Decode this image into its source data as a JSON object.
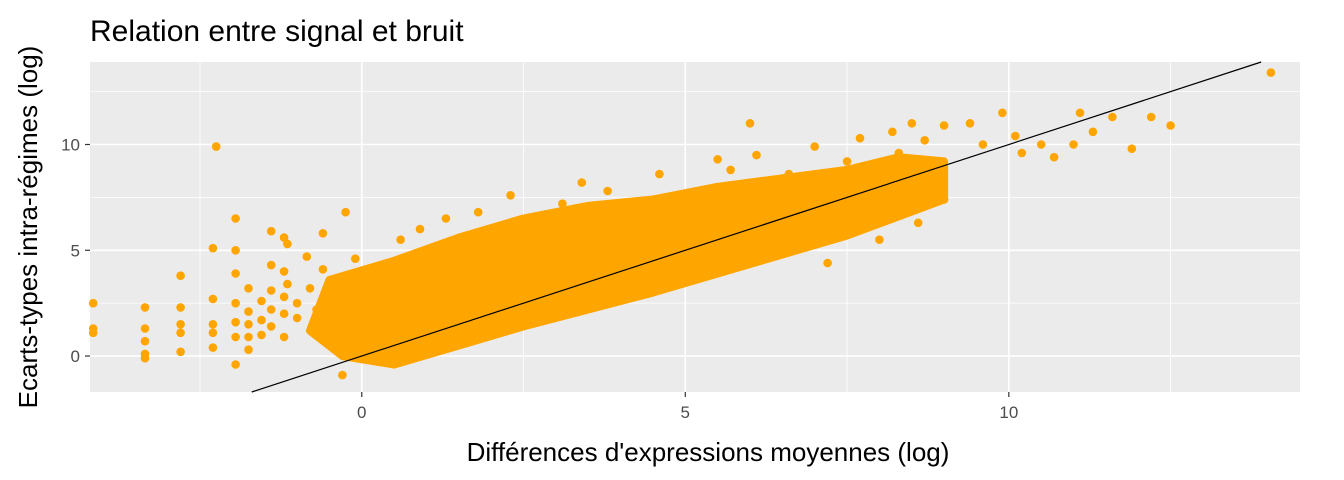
{
  "chart_data": {
    "type": "scatter",
    "title": "Relation entre signal et bruit",
    "xlabel": "Différences d'expressions moyennes (log)",
    "ylabel": "Ecarts-types intra-régimes (log)",
    "xlim": [
      -4.2,
      14.5
    ],
    "ylim": [
      -1.7,
      13.9
    ],
    "x_ticks": [
      0,
      5,
      10
    ],
    "y_ticks": [
      0,
      5,
      10
    ],
    "grid": true,
    "panel_background": "#ebebeb",
    "point_color": "#ffa500",
    "reference_line": {
      "slope": 1,
      "intercept": 0,
      "color": "#000000"
    },
    "series": [
      {
        "points": [
          [
            -4.15,
            2.5
          ],
          [
            -4.15,
            1.3
          ],
          [
            -4.15,
            1.1
          ],
          [
            -3.35,
            2.3
          ],
          [
            -3.35,
            1.3
          ],
          [
            -3.35,
            0.7
          ],
          [
            -3.35,
            0.1
          ],
          [
            -3.35,
            -0.1
          ],
          [
            -2.8,
            3.8
          ],
          [
            -2.8,
            2.3
          ],
          [
            -2.8,
            1.5
          ],
          [
            -2.8,
            1.1
          ],
          [
            -2.8,
            0.2
          ],
          [
            -2.25,
            9.9
          ],
          [
            -2.3,
            5.1
          ],
          [
            -2.3,
            2.7
          ],
          [
            -2.3,
            1.5
          ],
          [
            -2.3,
            1.1
          ],
          [
            -2.3,
            0.4
          ],
          [
            -1.95,
            6.5
          ],
          [
            -1.95,
            5.0
          ],
          [
            -1.95,
            3.9
          ],
          [
            -1.95,
            2.5
          ],
          [
            -1.95,
            1.6
          ],
          [
            -1.95,
            0.9
          ],
          [
            -1.95,
            -0.4
          ],
          [
            -1.75,
            3.2
          ],
          [
            -1.75,
            2.1
          ],
          [
            -1.75,
            1.5
          ],
          [
            -1.75,
            0.9
          ],
          [
            -1.75,
            0.3
          ],
          [
            -1.55,
            2.6
          ],
          [
            -1.55,
            1.7
          ],
          [
            -1.55,
            1.0
          ],
          [
            -1.4,
            5.9
          ],
          [
            -1.4,
            4.3
          ],
          [
            -1.4,
            3.1
          ],
          [
            -1.4,
            2.2
          ],
          [
            -1.4,
            1.4
          ],
          [
            -1.2,
            5.6
          ],
          [
            -1.2,
            4.0
          ],
          [
            -1.2,
            2.8
          ],
          [
            -1.2,
            2.0
          ],
          [
            -1.2,
            0.9
          ],
          [
            -1.15,
            5.3
          ],
          [
            -1.15,
            3.4
          ],
          [
            -1.0,
            2.5
          ],
          [
            -1.0,
            1.8
          ],
          [
            -0.85,
            4.7
          ],
          [
            -0.8,
            3.2
          ],
          [
            -0.7,
            2.2
          ],
          [
            -0.6,
            4.1
          ],
          [
            -0.55,
            1.3
          ],
          [
            -0.6,
            5.8
          ],
          [
            -0.3,
            3.5
          ],
          [
            -0.25,
            6.8
          ],
          [
            -0.1,
            4.6
          ],
          [
            -0.2,
            0.0
          ],
          [
            -0.3,
            -0.9
          ],
          [
            0.5,
            3.7
          ],
          [
            0.6,
            5.5
          ],
          [
            0.9,
            6.0
          ],
          [
            1.3,
            6.5
          ],
          [
            1.8,
            6.8
          ],
          [
            2.3,
            7.6
          ],
          [
            2.5,
            5.5
          ],
          [
            3.1,
            7.2
          ],
          [
            3.4,
            8.2
          ],
          [
            3.8,
            7.8
          ],
          [
            4.0,
            7.0
          ],
          [
            4.6,
            8.6
          ],
          [
            5.5,
            9.3
          ],
          [
            5.7,
            8.8
          ],
          [
            6.0,
            11.0
          ],
          [
            6.1,
            9.5
          ],
          [
            6.6,
            8.6
          ],
          [
            7.0,
            9.9
          ],
          [
            7.5,
            9.2
          ],
          [
            7.7,
            10.3
          ],
          [
            8.2,
            10.6
          ],
          [
            8.3,
            9.6
          ],
          [
            8.5,
            11.0
          ],
          [
            8.7,
            10.2
          ],
          [
            9.0,
            10.9
          ],
          [
            9.4,
            11.0
          ],
          [
            9.6,
            10.0
          ],
          [
            9.9,
            11.5
          ],
          [
            10.1,
            10.4
          ],
          [
            10.2,
            9.6
          ],
          [
            10.5,
            10.0
          ],
          [
            10.7,
            9.4
          ],
          [
            11.0,
            10.0
          ],
          [
            11.1,
            11.5
          ],
          [
            11.3,
            10.6
          ],
          [
            11.6,
            11.3
          ],
          [
            11.9,
            9.8
          ],
          [
            12.2,
            11.3
          ],
          [
            12.5,
            10.9
          ],
          [
            14.05,
            13.4
          ],
          [
            7.2,
            4.4
          ],
          [
            8.0,
            5.5
          ],
          [
            8.6,
            6.3
          ],
          [
            9.0,
            7.4
          ],
          [
            8.4,
            7.0
          ],
          [
            7.9,
            6.6
          ]
        ]
      }
    ]
  }
}
